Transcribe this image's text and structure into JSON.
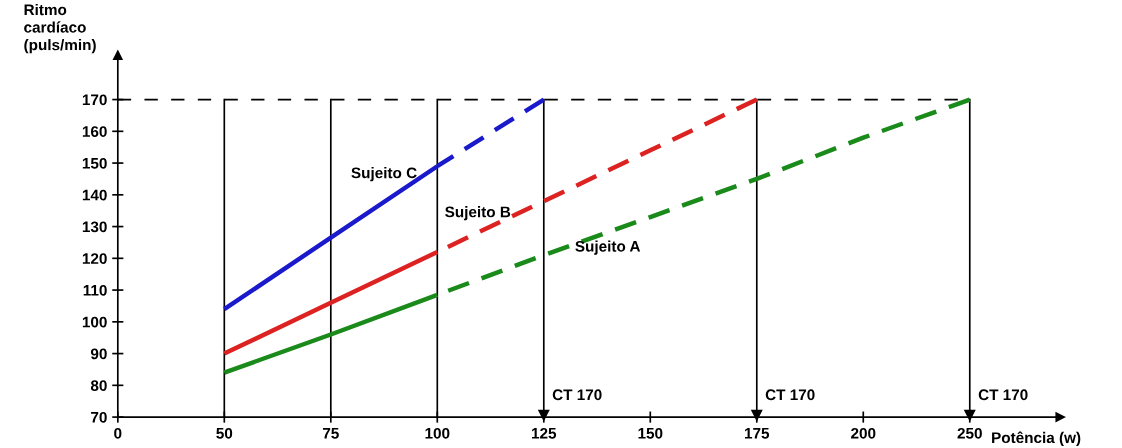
{
  "chart_data": {
    "type": "line",
    "xlabel": "Potência (w)",
    "ylabel": "Ritmo\ncardíaco\n(puls/min)",
    "categories": [
      "0",
      "50",
      "75",
      "100",
      "125",
      "150",
      "175",
      "200",
      "250"
    ],
    "ylim": [
      70,
      184
    ],
    "yticks": [
      70,
      80,
      90,
      100,
      110,
      120,
      130,
      140,
      150,
      160,
      170
    ],
    "series": [
      {
        "color": "#1a8a1a",
        "line_style": "solid",
        "values": [
          null,
          84,
          96,
          108.5,
          null,
          null,
          null,
          null,
          null
        ]
      },
      {
        "name": "Sujeito A",
        "color": "#1a8a1a",
        "line_style": "dashed",
        "values": [
          null,
          null,
          null,
          108.5,
          121,
          133,
          145,
          158,
          170
        ]
      },
      {
        "name": "Sujeito B",
        "color": "#dd2222",
        "line_style": "solid",
        "values": [
          null,
          90,
          106,
          122,
          null,
          null,
          null,
          null,
          null
        ]
      },
      {
        "color": "#dd2222",
        "line_style": "dashed",
        "values": [
          null,
          null,
          null,
          122,
          138,
          154,
          170,
          null,
          null
        ]
      },
      {
        "name": "Sujeito C",
        "color": "#1a1acc",
        "line_style": "solid",
        "values": [
          null,
          104,
          126.5,
          149,
          null,
          null,
          null,
          null,
          null
        ]
      },
      {
        "color": "#1a1acc",
        "line_style": "dashed",
        "values": [
          null,
          null,
          null,
          149,
          170,
          null,
          null,
          null,
          null
        ]
      }
    ],
    "ref_lines": [
      {
        "axis": "y",
        "value": 170,
        "line_style": "dashed",
        "color": "#000000"
      },
      {
        "axis": "x",
        "value": "50",
        "color": "#000000"
      },
      {
        "axis": "x",
        "value": "75",
        "color": "#000000"
      },
      {
        "axis": "x",
        "value": "100",
        "color": "#000000"
      },
      {
        "axis": "x",
        "value": "125",
        "label": "CT 170",
        "color": "#000000"
      },
      {
        "axis": "x",
        "value": "175",
        "label": "CT 170",
        "color": "#000000"
      },
      {
        "axis": "x",
        "value": "250",
        "label": "CT 170",
        "color": "#000000"
      }
    ],
    "grid": false,
    "legend": false
  }
}
